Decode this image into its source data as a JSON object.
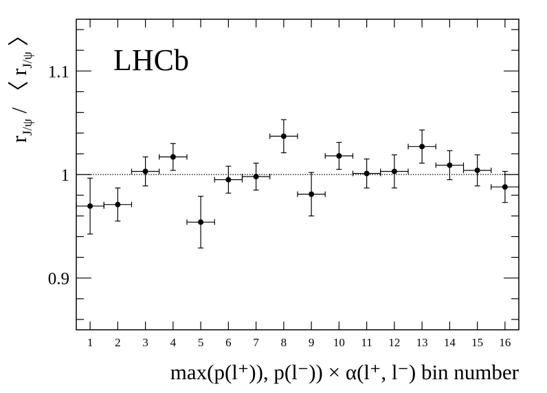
{
  "chart_data": {
    "type": "errorbar",
    "annotation": "LHCb",
    "xlabel": "max(p(l⁺)), p(l⁻)) × α(l⁺, l⁻) bin number",
    "ylabel": [
      "r",
      "J/ψ",
      " / 〈 r",
      "J/ψ",
      " 〉"
    ],
    "x": [
      1,
      2,
      3,
      4,
      5,
      6,
      7,
      8,
      9,
      10,
      11,
      12,
      13,
      14,
      15,
      16
    ],
    "xerr": [
      0.5,
      0.5,
      0.5,
      0.5,
      0.5,
      0.5,
      0.5,
      0.5,
      0.5,
      0.5,
      0.5,
      0.5,
      0.5,
      0.5,
      0.5,
      0.5
    ],
    "values": [
      0.9695,
      0.971,
      1.003,
      1.017,
      0.954,
      0.995,
      0.998,
      1.037,
      0.981,
      1.018,
      1.001,
      1.003,
      1.027,
      1.009,
      1.004,
      0.988
    ],
    "yerr": [
      0.027,
      0.016,
      0.014,
      0.013,
      0.025,
      0.013,
      0.013,
      0.016,
      0.021,
      0.013,
      0.014,
      0.016,
      0.016,
      0.014,
      0.015,
      0.015
    ],
    "color": "#000000",
    "reference_line": 1,
    "xlim": [
      0.5,
      16.5
    ],
    "xticks": [
      1,
      2,
      3,
      4,
      5,
      6,
      7,
      8,
      9,
      10,
      11,
      12,
      13,
      14,
      15,
      16
    ],
    "ylim": [
      0.85,
      1.15
    ],
    "yticks": [
      0.9,
      1,
      1.1
    ],
    "yminor_ticks": [
      0.86,
      0.88,
      0.92,
      0.94,
      0.96,
      0.98,
      1.02,
      1.04,
      1.06,
      1.08,
      1.12,
      1.14
    ]
  }
}
